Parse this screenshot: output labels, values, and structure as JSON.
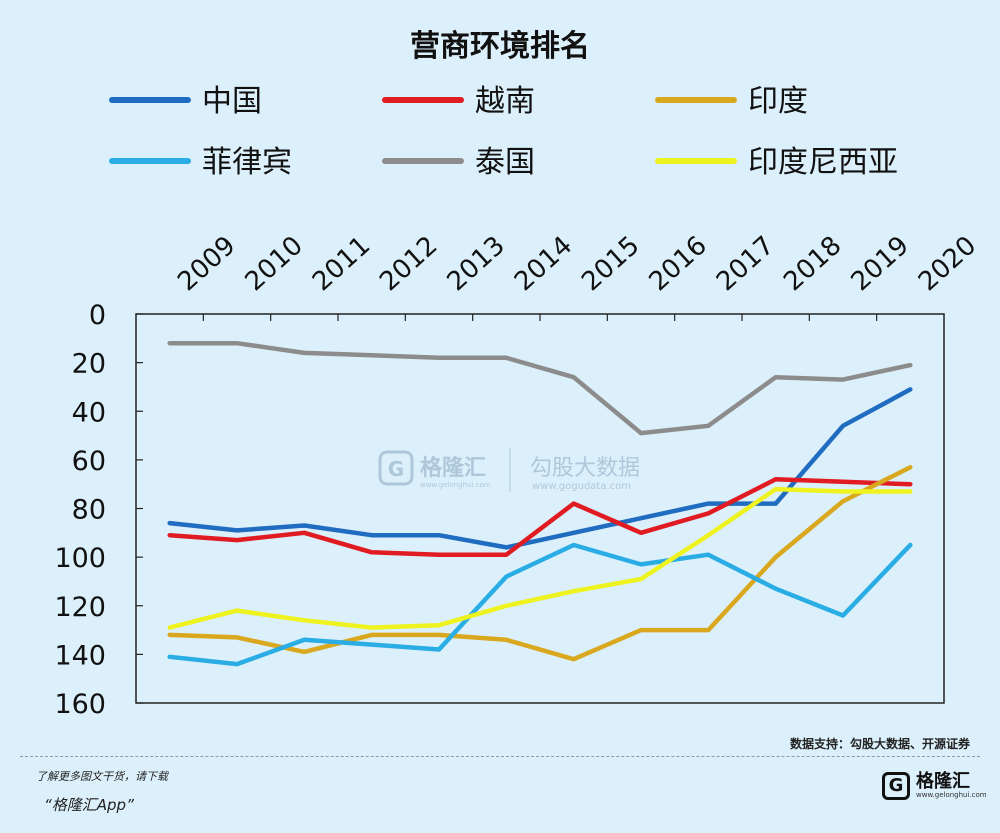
{
  "chart_data": {
    "type": "line",
    "title": "营商环境排名",
    "x": [
      "2009",
      "2010",
      "2011",
      "2012",
      "2013",
      "2014",
      "2015",
      "2016",
      "2017",
      "2018",
      "2019",
      "2020"
    ],
    "y_ticks": [
      "0",
      "20",
      "40",
      "60",
      "80",
      "100",
      "120",
      "140",
      "160"
    ],
    "ylim": [
      0,
      160
    ],
    "y_inverted": true,
    "legend_position": "top",
    "grid": false,
    "series": [
      {
        "name": "中国",
        "color": "#1f6cc0",
        "values": [
          86,
          89,
          87,
          91,
          91,
          96,
          90,
          84,
          78,
          78,
          46,
          31
        ]
      },
      {
        "name": "越南",
        "color": "#e01b22",
        "values": [
          91,
          93,
          90,
          98,
          99,
          99,
          78,
          90,
          82,
          68,
          69,
          70
        ]
      },
      {
        "name": "印度",
        "color": "#d9a81e",
        "values": [
          132,
          133,
          139,
          132,
          132,
          134,
          142,
          130,
          130,
          100,
          77,
          63
        ]
      },
      {
        "name": "菲律宾",
        "color": "#29ade4",
        "values": [
          141,
          144,
          134,
          136,
          138,
          108,
          95,
          103,
          99,
          113,
          124,
          95
        ]
      },
      {
        "name": "泰国",
        "color": "#8c8c8c",
        "values": [
          12,
          12,
          16,
          17,
          18,
          18,
          26,
          49,
          46,
          26,
          27,
          21
        ]
      },
      {
        "name": "印度尼西亚",
        "color": "#eef21e",
        "values": [
          129,
          122,
          126,
          129,
          128,
          120,
          114,
          109,
          91,
          72,
          73,
          73
        ]
      }
    ]
  },
  "watermark": {
    "logo_letter": "G",
    "brand_cn": "格隆汇",
    "brand_url": "www.gelonghui.com",
    "partner_cn": "勾股大数据",
    "partner_url": "www.gogudata.com"
  },
  "footer": {
    "source": "数据支持：勾股大数据、开源证券",
    "note": "了解更多图文干货，请下载",
    "app": "“格隆汇App”",
    "brand_letter": "G",
    "brand_name": "格隆汇",
    "brand_url": "www.gelonghui.com"
  }
}
